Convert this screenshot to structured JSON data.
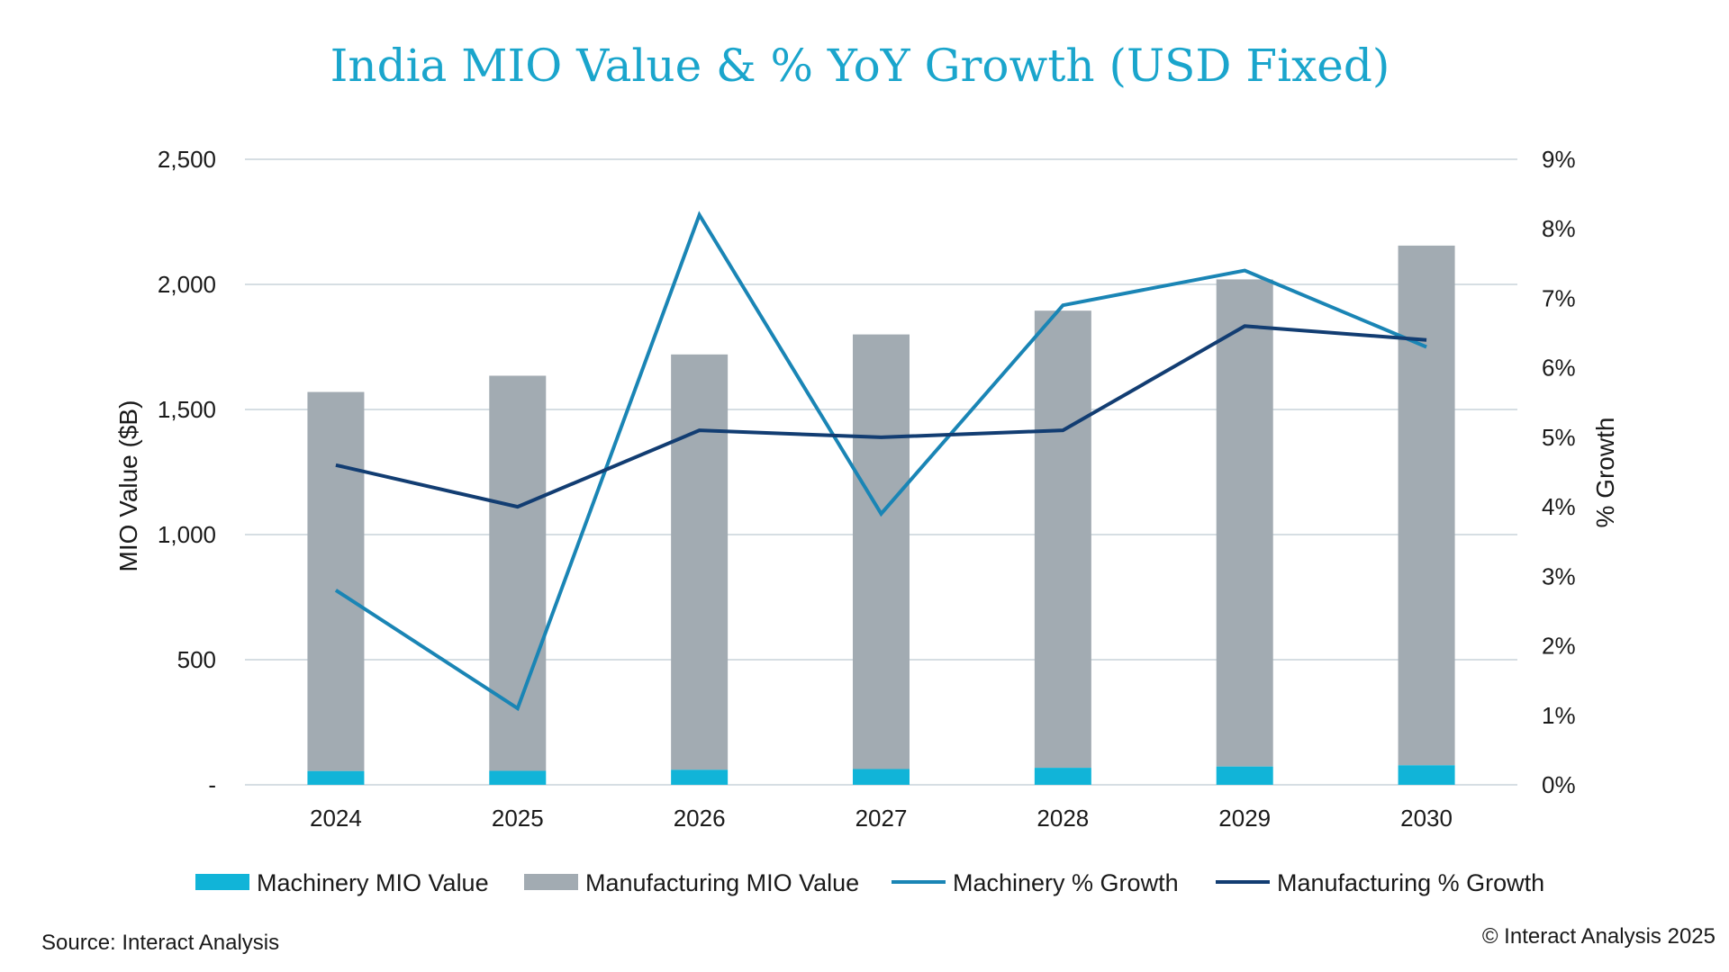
{
  "chart_data": {
    "type": "bar",
    "title": "India MIO Value & % YoY Growth (USD Fixed)",
    "categories": [
      "2024",
      "2025",
      "2026",
      "2027",
      "2028",
      "2029",
      "2030"
    ],
    "ylabel": "MIO Value ($B)",
    "y2label": "% Growth",
    "ylim": [
      0,
      2500
    ],
    "y2lim": [
      0,
      9
    ],
    "yticks": [
      "-",
      "500",
      "1,000",
      "1,500",
      "2,000",
      "2,500"
    ],
    "y2ticks": [
      "0%",
      "1%",
      "2%",
      "3%",
      "4%",
      "5%",
      "6%",
      "7%",
      "8%",
      "9%"
    ],
    "grid": true,
    "legend_position": "bottom",
    "series": [
      {
        "name": "Machinery MIO Value",
        "kind": "bar",
        "axis": "left",
        "color": "#11b4d8",
        "values": [
          55,
          56,
          60,
          63,
          68,
          73,
          78
        ]
      },
      {
        "name": "Manufacturing MIO Value",
        "kind": "bar",
        "axis": "left",
        "color": "#a2abb2",
        "values": [
          1570,
          1635,
          1720,
          1800,
          1895,
          2020,
          2155
        ]
      },
      {
        "name": "Machinery % Growth",
        "kind": "line",
        "axis": "right",
        "color": "#1a85b5",
        "values": [
          2.8,
          1.1,
          8.2,
          3.9,
          6.9,
          7.4,
          6.3
        ]
      },
      {
        "name": "Manufacturing % Growth",
        "kind": "line",
        "axis": "right",
        "color": "#123d72",
        "values": [
          4.6,
          4.0,
          5.1,
          5.0,
          5.1,
          6.6,
          6.4
        ]
      }
    ],
    "source": "Source: Interact Analysis",
    "copyright": "© Interact Analysis 2025"
  }
}
